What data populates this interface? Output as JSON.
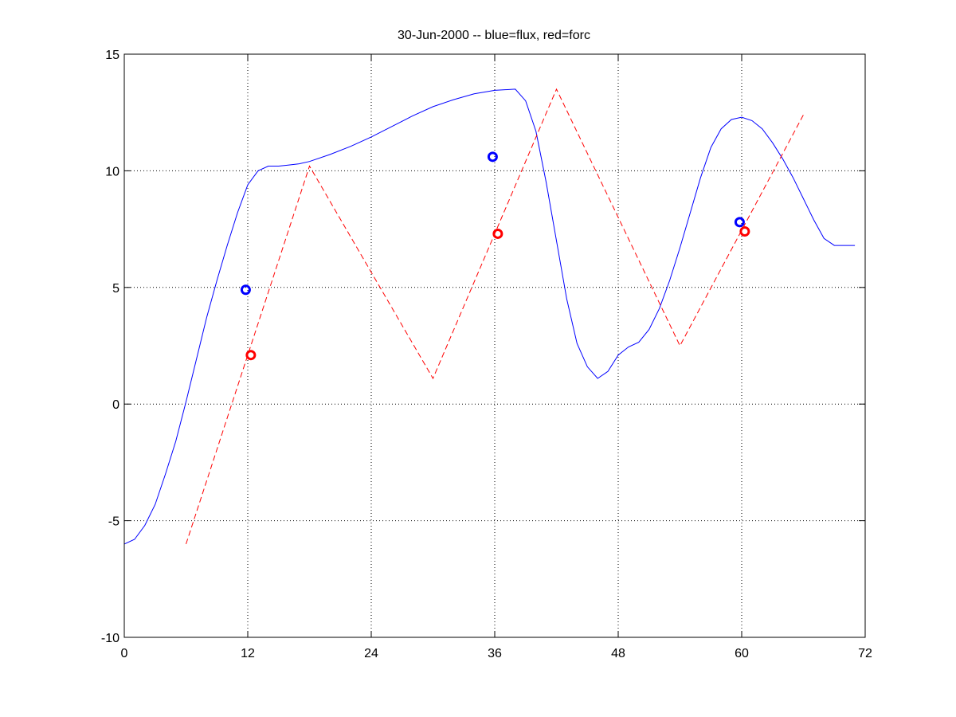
{
  "chart_data": {
    "type": "line",
    "title": "30-Jun-2000 -- blue=flux, red=forc",
    "xlabel": "",
    "ylabel": "",
    "xlim": [
      0,
      72
    ],
    "ylim": [
      -10,
      15
    ],
    "xticks": [
      0,
      12,
      24,
      36,
      48,
      60,
      72
    ],
    "yticks": [
      -10,
      -5,
      0,
      5,
      10,
      15
    ],
    "grid": true,
    "series": [
      {
        "style": "solid",
        "color": "#0000ff",
        "x": [
          0,
          1,
          2,
          3,
          4,
          5,
          6,
          7,
          8,
          9,
          10,
          11,
          12,
          13,
          14,
          15,
          16,
          17,
          18,
          20,
          22,
          24,
          26,
          28,
          30,
          32,
          34,
          36,
          38,
          39,
          40,
          41,
          42,
          43,
          44,
          45,
          46,
          47,
          48,
          49,
          50,
          51,
          52,
          53,
          54,
          55,
          56,
          57,
          58,
          59,
          60,
          61,
          62,
          63,
          64,
          65,
          66,
          67,
          68,
          69,
          70,
          71
        ],
        "y": [
          -6.0,
          -5.8,
          -5.2,
          -4.3,
          -3.0,
          -1.6,
          0.1,
          1.9,
          3.7,
          5.3,
          6.8,
          8.2,
          9.4,
          10.0,
          10.2,
          10.2,
          10.25,
          10.3,
          10.4,
          10.7,
          11.05,
          11.45,
          11.9,
          12.35,
          12.75,
          13.05,
          13.3,
          13.45,
          13.5,
          13.0,
          11.7,
          9.5,
          7.0,
          4.5,
          2.6,
          1.6,
          1.1,
          1.4,
          2.1,
          2.45,
          2.65,
          3.2,
          4.1,
          5.3,
          6.7,
          8.2,
          9.7,
          11.0,
          11.8,
          12.2,
          12.3,
          12.15,
          11.8,
          11.2,
          10.5,
          9.7,
          8.8,
          7.9,
          7.1,
          6.8,
          6.8,
          6.8
        ],
        "markers": {
          "x": [
            11.8,
            35.8,
            59.8
          ],
          "y": [
            4.9,
            10.6,
            7.8
          ]
        }
      },
      {
        "style": "dashed",
        "color": "#ff0000",
        "x": [
          6,
          18,
          30,
          42,
          54,
          66
        ],
        "y": [
          -6.0,
          10.2,
          1.1,
          13.5,
          2.5,
          12.4
        ],
        "markers": {
          "x": [
            12.3,
            36.3,
            60.3
          ],
          "y": [
            2.1,
            7.3,
            7.4
          ]
        }
      }
    ]
  }
}
